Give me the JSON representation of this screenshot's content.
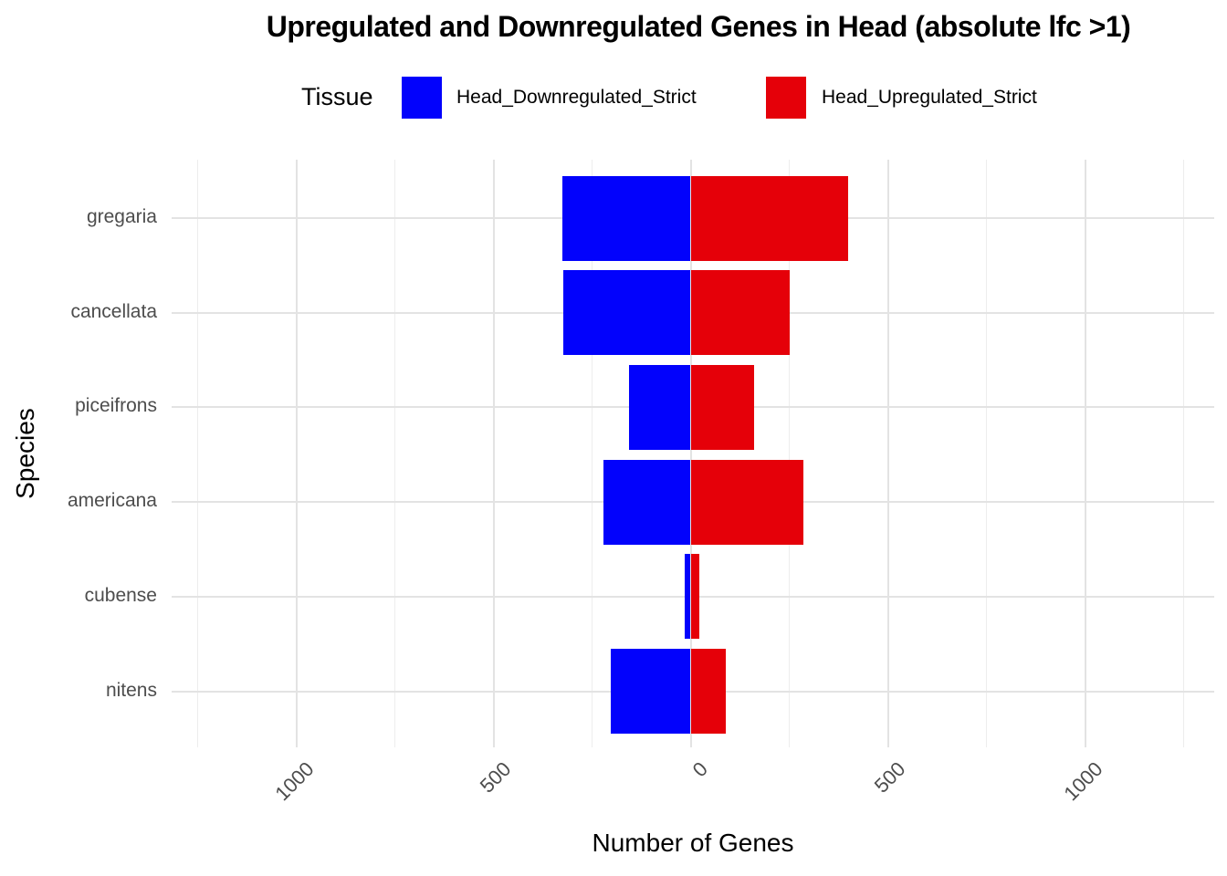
{
  "title": "Upregulated and Downregulated Genes in Head (absolute lfc >1)",
  "legend": {
    "title": "Tissue",
    "items": [
      {
        "label": "Head_Downregulated_Strict",
        "color": "#0202fc"
      },
      {
        "label": "Head_Upregulated_Strict",
        "color": "#e50009"
      }
    ]
  },
  "axes": {
    "xlabel": "Number of Genes",
    "ylabel": "Species"
  },
  "chart_data": {
    "type": "bar",
    "subtype": "diverging-horizontal",
    "title": "Upregulated and Downregulated Genes in Head (absolute lfc >1)",
    "xlabel": "Number of Genes",
    "ylabel": "Species",
    "categories": [
      "gregaria",
      "cancellata",
      "piceifrons",
      "americana",
      "cubense",
      "nitens"
    ],
    "series": [
      {
        "name": "Head_Downregulated_Strict",
        "direction": "left",
        "color": "#0202fc",
        "values": [
          325,
          322,
          156,
          220,
          14,
          202
        ]
      },
      {
        "name": "Head_Upregulated_Strict",
        "direction": "right",
        "color": "#e50009",
        "values": [
          399,
          251,
          162,
          287,
          21,
          90
        ]
      }
    ],
    "x_tick_values": [
      -1000,
      -500,
      0,
      500,
      1000
    ],
    "x_tick_labels": [
      "1000",
      "500",
      "0",
      "500",
      "1000"
    ],
    "x_minor_gridlines": [
      -1250,
      -750,
      -250,
      250,
      750,
      1250
    ],
    "xlim": [
      -1316,
      1327
    ],
    "grid": "major-and-minor",
    "legend_position": "top"
  }
}
